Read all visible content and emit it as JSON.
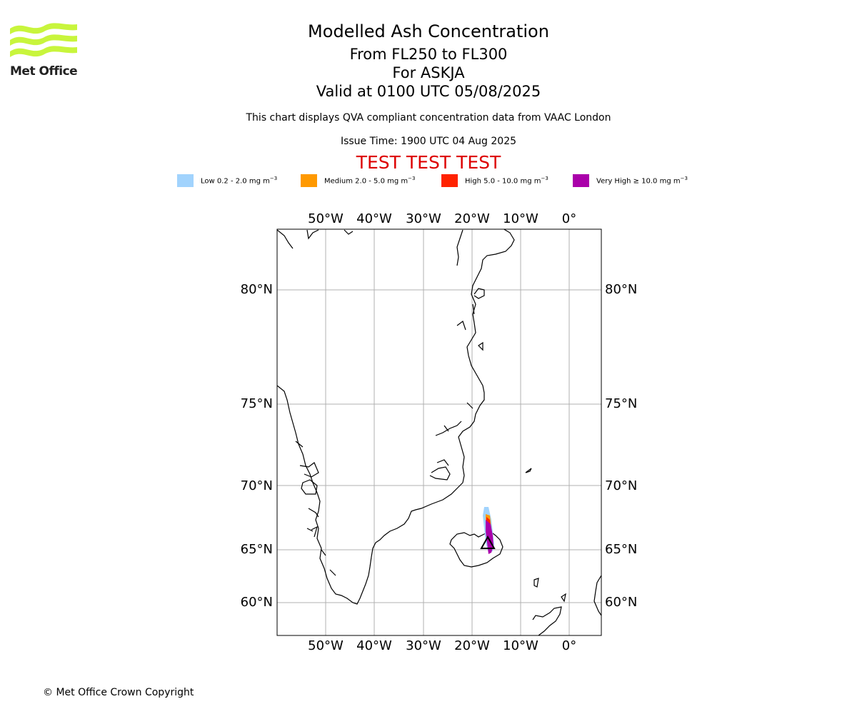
{
  "logo": {
    "text": "Met Office",
    "icon": "met-office-wave-icon",
    "color": "#c8f53c"
  },
  "title": "Modelled Ash Concentration",
  "levels": "From FL250 to FL300",
  "volcano": "For ASKJA",
  "valid": "Valid at 0100 UTC 05/08/2025",
  "description": "This chart displays QVA compliant concentration data from VAAC London",
  "issue_time": "Issue Time: 1900 UTC 04 Aug 2025",
  "test_banner": "TEST TEST TEST",
  "test_banner_color": "#dd0000",
  "legend": [
    {
      "label": "Low 0.2 - 2.0 mg m",
      "exp": "−3",
      "color": "#a1d3fd"
    },
    {
      "label": "Medium 2.0 - 5.0 mg m",
      "exp": "−3",
      "color": "#ff9900"
    },
    {
      "label": "High 5.0 - 10.0 mg m",
      "exp": "−3",
      "color": "#ff2200"
    },
    {
      "label": "Very High ≥ 10.0 mg m",
      "exp": "−3",
      "color": "#aa00aa"
    }
  ],
  "map": {
    "lon_labels": [
      "50°W",
      "40°W",
      "30°W",
      "20°W",
      "10°W",
      "0°"
    ],
    "lat_labels": [
      "80°N",
      "75°N",
      "70°N",
      "65°N",
      "60°N"
    ],
    "volcano_marker": "triangle-icon"
  },
  "copyright": "© Met Office Crown Copyright"
}
